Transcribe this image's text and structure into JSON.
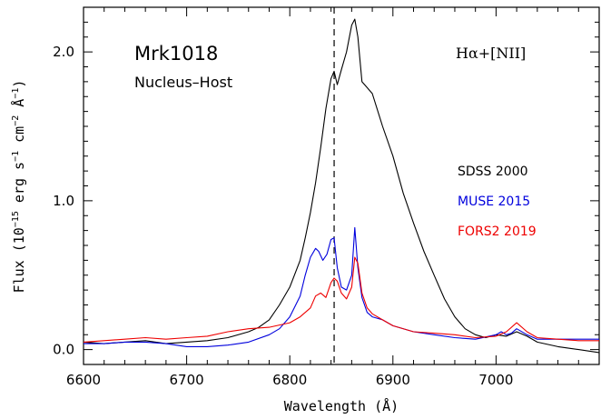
{
  "chart_data": {
    "type": "line",
    "title": "Mrk1018",
    "subtitle": "Nucleus–Host",
    "line_label": "Hα+[NII]",
    "xlabel": "Wavelength (Å)",
    "ylabel_parts": {
      "pre": "Flux (10",
      "exp1": "−15",
      "mid1": " erg s",
      "exp2": "−1",
      "mid2": " cm",
      "exp3": "−2",
      "mid3": " Å",
      "exp4": "−1",
      "post": ")"
    },
    "xlim": [
      6600,
      7100
    ],
    "ylim": [
      -0.1,
      2.3
    ],
    "x_ticks": [
      6600,
      6700,
      6800,
      6900,
      7000
    ],
    "x_tick_labels": [
      "6600",
      "6700",
      "6800",
      "6900",
      "7000"
    ],
    "y_ticks": [
      0,
      1,
      2
    ],
    "y_tick_labels": [
      "0.0",
      "1.0",
      "2.0"
    ],
    "vline": 6843,
    "series": [
      {
        "name": "SDSS 2000",
        "color": "#000000",
        "x": [
          6600,
          6620,
          6640,
          6660,
          6680,
          6700,
          6720,
          6740,
          6760,
          6770,
          6780,
          6790,
          6800,
          6810,
          6815,
          6820,
          6825,
          6830,
          6835,
          6840,
          6843,
          6846,
          6850,
          6855,
          6860,
          6863,
          6866,
          6870,
          6875,
          6880,
          6890,
          6900,
          6910,
          6920,
          6930,
          6940,
          6950,
          6960,
          6970,
          6980,
          6990,
          7000,
          7010,
          7020,
          7030,
          7040,
          7060,
          7080,
          7100
        ],
        "y": [
          0.05,
          0.04,
          0.05,
          0.06,
          0.04,
          0.05,
          0.06,
          0.08,
          0.12,
          0.15,
          0.2,
          0.3,
          0.42,
          0.6,
          0.75,
          0.92,
          1.12,
          1.36,
          1.62,
          1.82,
          1.87,
          1.78,
          1.88,
          2.0,
          2.18,
          2.22,
          2.1,
          1.8,
          1.76,
          1.72,
          1.5,
          1.3,
          1.05,
          0.85,
          0.66,
          0.5,
          0.34,
          0.22,
          0.14,
          0.1,
          0.08,
          0.1,
          0.09,
          0.12,
          0.09,
          0.05,
          0.02,
          0.0,
          -0.02
        ]
      },
      {
        "name": "MUSE 2015",
        "color": "#0000dd",
        "x": [
          6600,
          6620,
          6640,
          6660,
          6680,
          6700,
          6720,
          6740,
          6760,
          6780,
          6790,
          6800,
          6810,
          6815,
          6820,
          6825,
          6828,
          6832,
          6836,
          6840,
          6843,
          6846,
          6850,
          6855,
          6860,
          6863,
          6866,
          6870,
          6875,
          6880,
          6890,
          6900,
          6920,
          6940,
          6960,
          6980,
          7000,
          7005,
          7010,
          7015,
          7020,
          7030,
          7040,
          7060,
          7080,
          7100
        ],
        "y": [
          0.04,
          0.04,
          0.05,
          0.05,
          0.04,
          0.02,
          0.02,
          0.03,
          0.05,
          0.1,
          0.14,
          0.22,
          0.36,
          0.5,
          0.62,
          0.68,
          0.66,
          0.6,
          0.64,
          0.74,
          0.75,
          0.55,
          0.42,
          0.4,
          0.5,
          0.82,
          0.55,
          0.35,
          0.25,
          0.22,
          0.2,
          0.16,
          0.12,
          0.1,
          0.08,
          0.07,
          0.1,
          0.12,
          0.1,
          0.11,
          0.14,
          0.1,
          0.07,
          0.07,
          0.07,
          0.07
        ]
      },
      {
        "name": "FORS2 2019",
        "color": "#ee0000",
        "x": [
          6600,
          6620,
          6640,
          6660,
          6680,
          6700,
          6720,
          6740,
          6760,
          6780,
          6800,
          6810,
          6820,
          6825,
          6830,
          6835,
          6840,
          6843,
          6846,
          6850,
          6855,
          6860,
          6863,
          6866,
          6870,
          6875,
          6880,
          6890,
          6900,
          6920,
          6940,
          6960,
          6980,
          7000,
          7010,
          7020,
          7030,
          7040,
          7060,
          7080,
          7100
        ],
        "y": [
          0.05,
          0.06,
          0.07,
          0.08,
          0.07,
          0.08,
          0.09,
          0.12,
          0.14,
          0.15,
          0.18,
          0.22,
          0.28,
          0.36,
          0.38,
          0.35,
          0.45,
          0.48,
          0.46,
          0.38,
          0.34,
          0.42,
          0.62,
          0.58,
          0.38,
          0.28,
          0.24,
          0.2,
          0.16,
          0.12,
          0.11,
          0.1,
          0.08,
          0.09,
          0.12,
          0.18,
          0.12,
          0.08,
          0.07,
          0.06,
          0.06
        ]
      }
    ],
    "legend_placement": "right"
  }
}
